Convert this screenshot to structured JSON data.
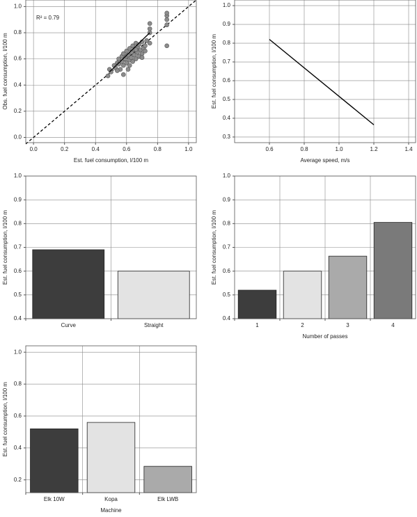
{
  "chart_data": [
    {
      "type": "scatter",
      "xlabel": "Est. fuel consumption, l/100 m",
      "ylabel": "Obs. fuel consumption, l/100 m",
      "annotation": "R² = 0.79",
      "x": [
        0.48,
        0.49,
        0.5,
        0.52,
        0.53,
        0.54,
        0.55,
        0.55,
        0.56,
        0.57,
        0.57,
        0.58,
        0.58,
        0.59,
        0.6,
        0.6,
        0.6,
        0.61,
        0.61,
        0.62,
        0.62,
        0.63,
        0.63,
        0.64,
        0.64,
        0.65,
        0.65,
        0.66,
        0.66,
        0.67,
        0.67,
        0.68,
        0.68,
        0.69,
        0.7,
        0.7,
        0.71,
        0.72,
        0.72,
        0.73,
        0.75,
        0.75,
        0.75,
        0.75,
        0.86,
        0.86,
        0.86,
        0.86,
        0.86,
        0.54,
        0.58,
        0.62,
        0.66,
        0.7
      ],
      "y": [
        0.47,
        0.52,
        0.5,
        0.55,
        0.53,
        0.57,
        0.56,
        0.6,
        0.52,
        0.58,
        0.62,
        0.55,
        0.64,
        0.6,
        0.57,
        0.62,
        0.66,
        0.52,
        0.63,
        0.59,
        0.68,
        0.61,
        0.65,
        0.58,
        0.7,
        0.63,
        0.67,
        0.6,
        0.72,
        0.65,
        0.69,
        0.62,
        0.71,
        0.67,
        0.64,
        0.73,
        0.68,
        0.7,
        0.66,
        0.74,
        0.72,
        0.8,
        0.83,
        0.87,
        0.7,
        0.86,
        0.9,
        0.93,
        0.95,
        0.51,
        0.48,
        0.55,
        0.67,
        0.61
      ],
      "color": "#8c8c8c",
      "fit": {
        "x": [
          0.49,
          0.75
        ],
        "y": [
          0.5,
          0.8
        ]
      },
      "reference": {
        "x": [
          -0.05,
          1.05
        ],
        "y": [
          -0.05,
          1.05
        ]
      },
      "xlim": [
        -0.05,
        1.05
      ],
      "ylim": [
        -0.04,
        1.05
      ],
      "xticks": [
        {
          "value": 0,
          "label": "0.0"
        },
        0.2,
        0.4,
        0.6,
        0.8,
        {
          "value": 1,
          "label": "1.0"
        }
      ],
      "yticks": [
        {
          "value": 0,
          "label": "0.0"
        },
        0.2,
        0.4,
        0.6,
        0.8,
        {
          "value": 1,
          "label": "1.0"
        }
      ],
      "grid": true
    },
    {
      "type": "line",
      "xlabel": "Average speed, m/s",
      "ylabel": "Est. fuel consumption, l/100 m",
      "x": [
        0.6,
        1.2
      ],
      "values": [
        0.82,
        0.365
      ],
      "color": "#000000",
      "xlim": [
        0.4,
        1.44
      ],
      "ylim": [
        0.27,
        1.03
      ],
      "xticks": [
        0.6,
        0.8,
        {
          "value": 1,
          "label": "1.0"
        },
        1.2,
        1.4
      ],
      "yticks": [
        0.3,
        0.4,
        0.5,
        0.6,
        0.7,
        0.8,
        0.9,
        {
          "value": 1,
          "label": "1.0"
        }
      ],
      "grid": true
    },
    {
      "type": "bar",
      "ylabel": "Est. fuel consumption, l/100 m",
      "categories": [
        "Curve",
        "Straight"
      ],
      "values": [
        0.69,
        0.6
      ],
      "colors": [
        "#3d3d3d",
        "#e3e3e3"
      ],
      "ylim": [
        0.4,
        1.0
      ],
      "yticks": [
        0.4,
        0.5,
        0.6,
        0.7,
        0.8,
        0.9,
        {
          "value": 1,
          "label": "1.0"
        }
      ],
      "grid": true
    },
    {
      "type": "bar",
      "xlabel": "Number of passes",
      "ylabel": "Est. fuel consumption, l/100 m",
      "categories": [
        "1",
        "2",
        "3",
        "4"
      ],
      "values": [
        0.52,
        0.6,
        0.663,
        0.805
      ],
      "colors": [
        "#3d3d3d",
        "#e3e3e3",
        "#aaaaaa",
        "#7a7a7a"
      ],
      "ylim": [
        0.4,
        1.0
      ],
      "yticks": [
        0.4,
        0.5,
        0.6,
        0.7,
        0.8,
        0.9,
        {
          "value": 1,
          "label": "1.0"
        }
      ],
      "grid": true
    },
    {
      "type": "bar",
      "xlabel": "Machine",
      "ylabel": "Est. fuel consumption, l/100 m",
      "categories": [
        "Elk 10W",
        "Kopa",
        "Elk LWB"
      ],
      "values": [
        0.52,
        0.56,
        0.285
      ],
      "colors": [
        "#3d3d3d",
        "#e3e3e3",
        "#aaaaaa"
      ],
      "ylim": [
        0.12,
        1.04
      ],
      "yticks": [
        0.2,
        0.4,
        0.6,
        0.8,
        {
          "value": 1,
          "label": "1.0"
        }
      ],
      "grid": true
    }
  ]
}
